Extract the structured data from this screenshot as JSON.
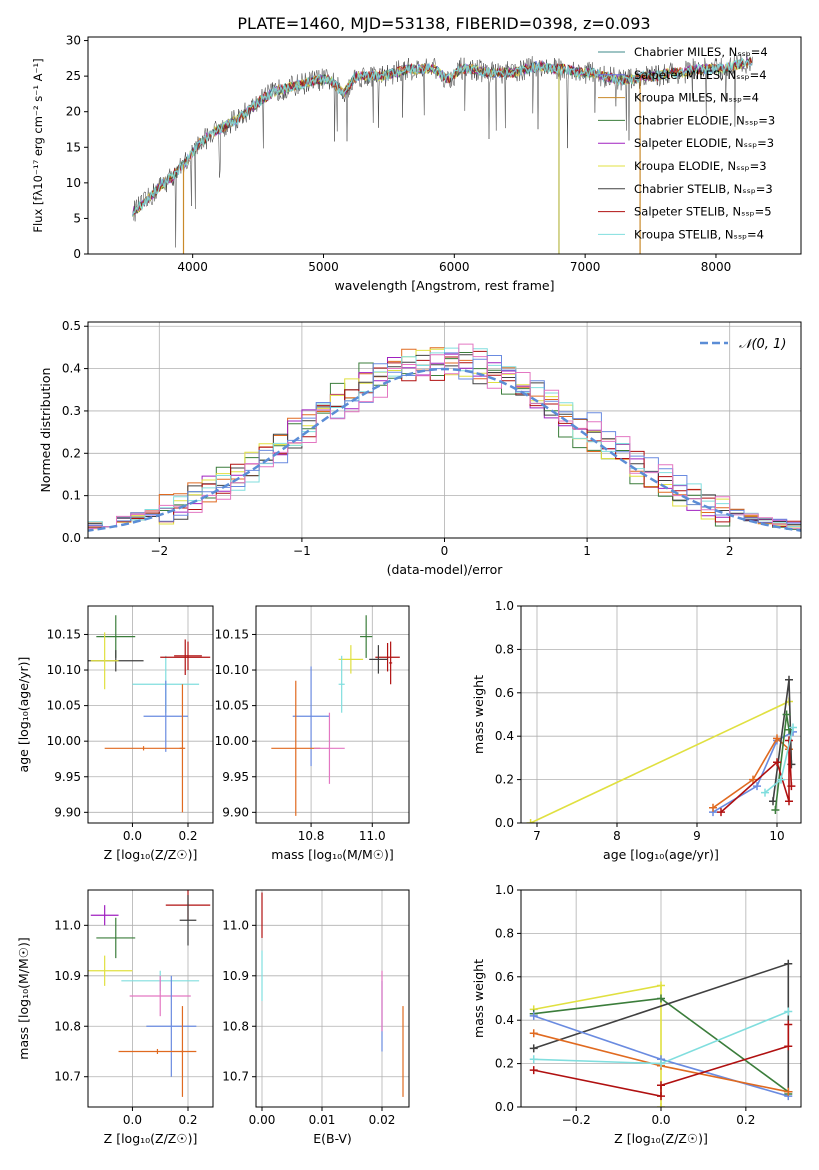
{
  "figure": {
    "title": "PLATE=1460, MJD=53138, FIBERID=0398, z=0.093"
  },
  "colors": {
    "grid": "#b0b0b0",
    "models": [
      "#7f7f7f",
      "#1f77b4",
      "#ff7f0e",
      "#2ca02c",
      "#d62728",
      "#9467bd",
      "#8c564b",
      "#e377c2",
      "#bcbd22",
      "#17becf"
    ]
  },
  "chart_data": [
    {
      "id": "spectrum",
      "type": "line",
      "xlabel": "wavelength [Angstrom, rest frame]",
      "ylabel": "Flux [fλ10⁻¹⁷ erg cm⁻² s⁻¹ A⁻¹]",
      "xlim": [
        3200,
        8650
      ],
      "ylim": [
        0,
        30.5
      ],
      "xticks": [
        4000,
        5000,
        6000,
        7000,
        8000
      ],
      "yticks": [
        0,
        5,
        10,
        15,
        20,
        25,
        30
      ],
      "legend_position": "upper right",
      "legend": [
        {
          "label": "Chabrier MILES, Nₛₛₚ=4",
          "color": "#3c8a8a"
        },
        {
          "label": "Salpeter MILES, Nₛₛₚ=4",
          "color": "#6a6adc"
        },
        {
          "label": "Kroupa MILES, Nₛₛₚ=4",
          "color": "#c98a2a"
        },
        {
          "label": "Chabrier ELODIE, Nₛₛₚ=3",
          "color": "#3b7d3b"
        },
        {
          "label": "Salpeter ELODIE, Nₛₛₚ=3",
          "color": "#a020c0"
        },
        {
          "label": "Kroupa ELODIE, Nₛₛₚ=3",
          "color": "#e0e040"
        },
        {
          "label": "Chabrier STELIB, Nₛₛₚ=3",
          "color": "#404040"
        },
        {
          "label": "Salpeter STELIB, Nₛₛₚ=5",
          "color": "#b01010"
        },
        {
          "label": "Kroupa STELIB, Nₛₛₚ=4",
          "color": "#80dede"
        }
      ],
      "continuum": {
        "x": [
          3550,
          3650,
          3750,
          3850,
          3950,
          4050,
          4150,
          4250,
          4350,
          4450,
          4550,
          4650,
          4750,
          4850,
          4950,
          5050,
          5150,
          5250,
          5350,
          5450,
          5550,
          5650,
          5750,
          5850,
          5950,
          6050,
          6150,
          6250,
          6350,
          6450,
          6550,
          6650,
          6750,
          6850,
          6950,
          7050,
          7150,
          7250,
          7350,
          7450,
          7550,
          7650,
          7750,
          7850,
          7950,
          8050,
          8150,
          8250
        ],
        "y": [
          6,
          7.5,
          9.5,
          11,
          13,
          15.5,
          17,
          18,
          19,
          20.5,
          22,
          23,
          23.5,
          24,
          24.5,
          24.5,
          22.5,
          25,
          25,
          25,
          25.5,
          26,
          26,
          26,
          24.5,
          26,
          26,
          25.5,
          25.5,
          25.5,
          26,
          26.5,
          26,
          26,
          25.5,
          25.5,
          25,
          24.5,
          24.5,
          25,
          25,
          25.5,
          25.5,
          26,
          26,
          26,
          26.5,
          27
        ]
      },
      "drops": [
        {
          "x": 3930,
          "color": "#c98a2a"
        },
        {
          "x": 6800,
          "color": "#b9b94a"
        },
        {
          "x": 7420,
          "color": "#c98a2a"
        }
      ]
    },
    {
      "id": "residuals",
      "type": "line",
      "xlabel": "(data-model)/error",
      "ylabel": "Normed distribution",
      "xlim": [
        -2.5,
        2.5
      ],
      "ylim": [
        0,
        0.51
      ],
      "xticks": [
        -2,
        -1,
        0,
        1,
        2
      ],
      "yticks": [
        0.0,
        0.1,
        0.2,
        0.3,
        0.4,
        0.5
      ],
      "legend_position": "upper right",
      "legend": [
        {
          "label": "𝒩(0, 1)",
          "color": "#5b8dd6"
        }
      ],
      "gaussian": {
        "mean": 0,
        "sigma": 1
      }
    },
    {
      "id": "age-vs-Z",
      "type": "scatter",
      "xlabel": "Z [log₁₀(Z/Z☉)]",
      "ylabel": "age  [log₁₀(age/yr)]",
      "xlim": [
        -0.16,
        0.29
      ],
      "ylim": [
        9.885,
        10.19
      ],
      "xticks": [
        0.0,
        0.2
      ],
      "yticks": [
        9.9,
        9.95,
        10.0,
        10.05,
        10.1,
        10.15
      ],
      "points": [
        {
          "x": -0.06,
          "y": 10.147,
          "xerr": 0.07,
          "yerr": 0.03,
          "color": "#3b7d3b"
        },
        {
          "x": -0.06,
          "y": 10.113,
          "xerr": 0.1,
          "yerr": 0.015,
          "color": "#404040"
        },
        {
          "x": -0.1,
          "y": 10.113,
          "xerr": 0.05,
          "yerr": 0.04,
          "color": "#e0e040"
        },
        {
          "x": 0.12,
          "y": 10.08,
          "xerr": 0.12,
          "yerr": 0.04,
          "color": "#80dede"
        },
        {
          "x": 0.19,
          "y": 10.118,
          "xerr": 0.09,
          "yerr": 0.025,
          "color": "#b01010"
        },
        {
          "x": 0.2,
          "y": 10.12,
          "xerr": 0.05,
          "yerr": 0.02,
          "color": "#b01010"
        },
        {
          "x": 0.12,
          "y": 10.035,
          "xerr": 0.08,
          "yerr": 0.05,
          "color": "#6a8be0"
        },
        {
          "x": 0.04,
          "y": 9.99,
          "xerr": 0.14,
          "yerr": 0.003,
          "color": "#e06a20"
        },
        {
          "x": 0.18,
          "y": 9.99,
          "xerr": 0.01,
          "yerr": 0.09,
          "color": "#e06a20"
        }
      ]
    },
    {
      "id": "age-vs-mass",
      "type": "scatter",
      "xlabel": "mass [log₁₀(M/M☉)]",
      "ylabel": "",
      "xlim": [
        10.62,
        11.12
      ],
      "ylim": [
        9.885,
        10.19
      ],
      "xticks": [
        10.8,
        11.0
      ],
      "yticks": [
        9.9,
        9.95,
        10.0,
        10.05,
        10.1,
        10.15
      ],
      "points": [
        {
          "x": 10.98,
          "y": 10.147,
          "xerr": 0.02,
          "yerr": 0.03,
          "color": "#3b7d3b"
        },
        {
          "x": 11.05,
          "y": 10.118,
          "xerr": 0.04,
          "yerr": 0.02,
          "color": "#b01010"
        },
        {
          "x": 11.06,
          "y": 10.11,
          "xerr": 0.005,
          "yerr": 0.03,
          "color": "#b01010"
        },
        {
          "x": 11.02,
          "y": 10.115,
          "xerr": 0.03,
          "yerr": 0.02,
          "color": "#404040"
        },
        {
          "x": 10.93,
          "y": 10.115,
          "xerr": 0.04,
          "yerr": 0.02,
          "color": "#e0e040"
        },
        {
          "x": 10.9,
          "y": 10.08,
          "xerr": 0.01,
          "yerr": 0.04,
          "color": "#80dede"
        },
        {
          "x": 10.8,
          "y": 10.035,
          "xerr": 0.06,
          "yerr": 0.07,
          "color": "#6a8be0"
        },
        {
          "x": 10.75,
          "y": 9.99,
          "xerr": 0.08,
          "yerr": 0.095,
          "color": "#e06a20"
        },
        {
          "x": 10.86,
          "y": 9.99,
          "xerr": 0.05,
          "yerr": 0.05,
          "color": "#e377c2"
        }
      ]
    },
    {
      "id": "weight-vs-age",
      "type": "line",
      "xlabel": "age  [log₁₀(age/yr)]",
      "ylabel": "mass weight",
      "xlim": [
        6.8,
        10.3
      ],
      "ylim": [
        0,
        1.0
      ],
      "xticks": [
        7,
        8,
        9,
        10
      ],
      "yticks": [
        0.0,
        0.2,
        0.4,
        0.6,
        0.8,
        1.0
      ],
      "series": [
        {
          "color": "#e0e040",
          "x": [
            6.92,
            10.15
          ],
          "y": [
            0.0,
            0.56
          ]
        },
        {
          "color": "#6a8be0",
          "x": [
            9.2,
            9.75,
            10.0,
            10.2
          ],
          "y": [
            0.05,
            0.17,
            0.38,
            0.42
          ]
        },
        {
          "color": "#e06a20",
          "x": [
            9.2,
            9.7,
            10.0,
            10.15
          ],
          "y": [
            0.07,
            0.2,
            0.39,
            0.34
          ]
        },
        {
          "color": "#404040",
          "x": [
            9.95,
            10.15,
            10.18
          ],
          "y": [
            0.1,
            0.66,
            0.27
          ]
        },
        {
          "color": "#3b7d3b",
          "x": [
            9.98,
            10.12,
            10.15
          ],
          "y": [
            0.06,
            0.5,
            0.43
          ]
        },
        {
          "color": "#b01010",
          "x": [
            9.3,
            10.0,
            10.15,
            10.15,
            10.18
          ],
          "y": [
            0.05,
            0.28,
            0.1,
            0.38,
            0.17
          ]
        },
        {
          "color": "#80dede",
          "x": [
            9.85,
            10.05,
            10.2
          ],
          "y": [
            0.14,
            0.2,
            0.44
          ]
        }
      ]
    },
    {
      "id": "mass-vs-Z",
      "type": "scatter",
      "xlabel": "Z [log₁₀(Z/Z☉)]",
      "ylabel": "mass [log₁₀(M/M☉)]",
      "xlim": [
        -0.16,
        0.29
      ],
      "ylim": [
        10.64,
        11.07
      ],
      "xticks": [
        0.0,
        0.2
      ],
      "yticks": [
        10.7,
        10.8,
        10.9,
        11.0
      ],
      "points": [
        {
          "x": -0.1,
          "y": 11.02,
          "xerr": 0.05,
          "yerr": 0.02,
          "color": "#a020c0"
        },
        {
          "x": -0.06,
          "y": 10.975,
          "xerr": 0.07,
          "yerr": 0.04,
          "color": "#3b7d3b"
        },
        {
          "x": 0.2,
          "y": 11.04,
          "xerr": 0.08,
          "yerr": 0.03,
          "color": "#b01010"
        },
        {
          "x": 0.2,
          "y": 11.01,
          "xerr": 0.03,
          "yerr": 0.05,
          "color": "#404040"
        },
        {
          "x": -0.1,
          "y": 10.91,
          "xerr": 0.1,
          "yerr": 0.03,
          "color": "#e0e040"
        },
        {
          "x": 0.1,
          "y": 10.89,
          "xerr": 0.14,
          "yerr": 0.02,
          "color": "#80dede"
        },
        {
          "x": 0.1,
          "y": 10.86,
          "xerr": 0.11,
          "yerr": 0.04,
          "color": "#e377c2"
        },
        {
          "x": 0.14,
          "y": 10.8,
          "xerr": 0.09,
          "yerr": 0.1,
          "color": "#6a8be0"
        },
        {
          "x": 0.09,
          "y": 10.75,
          "xerr": 0.14,
          "yerr": 0.005,
          "color": "#e06a20"
        },
        {
          "x": 0.18,
          "y": 10.75,
          "xerr": 0.005,
          "yerr": 0.09,
          "color": "#e06a20"
        }
      ]
    },
    {
      "id": "mass-vs-ebv",
      "type": "scatter",
      "xlabel": "E(B-V)",
      "ylabel": "",
      "xlim": [
        -0.001,
        0.0245
      ],
      "ylim": [
        10.64,
        11.07
      ],
      "xticks": [
        0.0,
        0.01,
        0.02
      ],
      "yticks": [
        10.7,
        10.8,
        10.9,
        11.0
      ],
      "points": [
        {
          "x": 0.0,
          "y": 11.02,
          "xerr": 0,
          "yerr": 0.045,
          "color": "#b01010"
        },
        {
          "x": 0.0,
          "y": 10.9,
          "xerr": 0,
          "yerr": 0.05,
          "color": "#80dede"
        },
        {
          "x": 0.02,
          "y": 10.82,
          "xerr": 0,
          "yerr": 0.07,
          "color": "#6a8be0"
        },
        {
          "x": 0.02,
          "y": 10.85,
          "xerr": 0,
          "yerr": 0.06,
          "color": "#e377c2"
        },
        {
          "x": 0.0235,
          "y": 10.75,
          "xerr": 0,
          "yerr": 0.09,
          "color": "#e06a20"
        }
      ]
    },
    {
      "id": "weight-vs-Z",
      "type": "line",
      "xlabel": "Z [log₁₀(Z/Z☉)]",
      "ylabel": "mass weight",
      "xlim": [
        -0.33,
        0.33
      ],
      "ylim": [
        0,
        1.0
      ],
      "xticks": [
        -0.2,
        0.0,
        0.2
      ],
      "yticks": [
        0.0,
        0.2,
        0.4,
        0.6,
        0.8,
        1.0
      ],
      "series": [
        {
          "color": "#e0e040",
          "x": [
            -0.3,
            0.0,
            0.0
          ],
          "y": [
            0.45,
            0.56,
            0.0
          ]
        },
        {
          "color": "#3b7d3b",
          "x": [
            -0.3,
            0.0,
            0.3,
            0.3
          ],
          "y": [
            0.43,
            0.5,
            0.07,
            0.06
          ]
        },
        {
          "color": "#404040",
          "x": [
            -0.3,
            0.3,
            0.3
          ],
          "y": [
            0.27,
            0.66,
            0.07
          ]
        },
        {
          "color": "#6a8be0",
          "x": [
            -0.3,
            0.0,
            0.3
          ],
          "y": [
            0.42,
            0.22,
            0.05
          ]
        },
        {
          "color": "#e06a20",
          "x": [
            -0.3,
            0.0,
            0.3
          ],
          "y": [
            0.34,
            0.19,
            0.07
          ]
        },
        {
          "color": "#80dede",
          "x": [
            -0.3,
            0.0,
            0.3
          ],
          "y": [
            0.22,
            0.2,
            0.44
          ]
        },
        {
          "color": "#b01010",
          "x": [
            -0.3,
            0.0,
            0.0,
            0.3,
            0.3
          ],
          "y": [
            0.17,
            0.05,
            0.1,
            0.28,
            0.38
          ]
        }
      ]
    }
  ]
}
